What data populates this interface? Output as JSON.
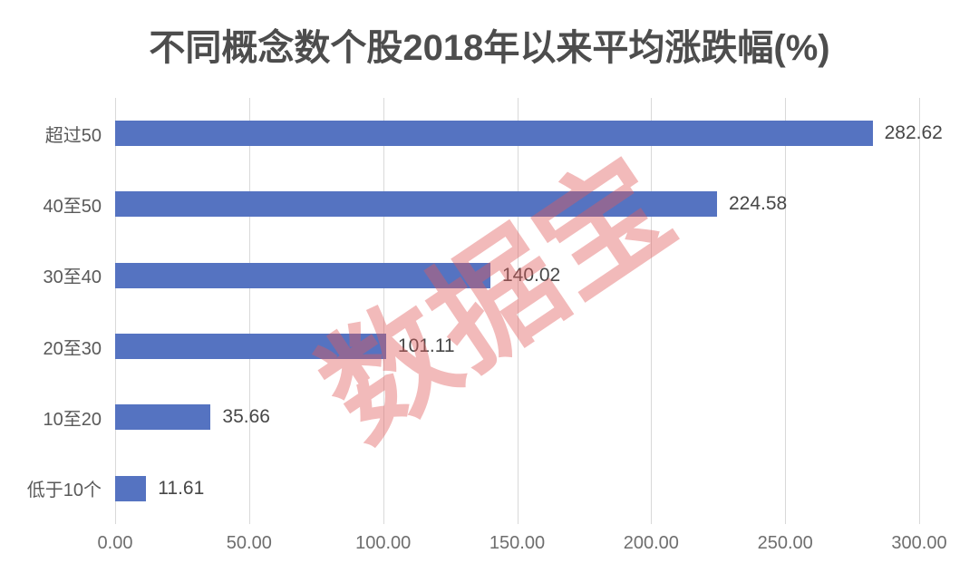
{
  "title": "不同概念数个股2018年以来平均涨跌幅(%)",
  "watermark": "数据宝",
  "colors": {
    "bar": "#5573C1",
    "watermark": "#E05A5A",
    "grid": "#D9D9D9",
    "title_text": "#4D4D4D",
    "category_text": "#595959",
    "value_text": "#474747",
    "tick_text": "#6E6E6E"
  },
  "chart_data": {
    "type": "bar",
    "orientation": "horizontal",
    "title": "不同概念数个股2018年以来平均涨跌幅(%)",
    "categories": [
      "超过50",
      "40至50",
      "30至40",
      "20至30",
      "10至20",
      "低于10个"
    ],
    "values": [
      282.62,
      224.58,
      140.02,
      101.11,
      35.66,
      11.61
    ],
    "value_labels": [
      "282.62",
      "224.58",
      "140.02",
      "101.11",
      "35.66",
      "11.61"
    ],
    "x_ticks": [
      "0.00",
      "50.00",
      "100.00",
      "150.00",
      "200.00",
      "250.00",
      "300.00"
    ],
    "xlim": [
      0,
      300
    ],
    "xlabel": "",
    "ylabel": "",
    "grid": "vertical-only",
    "legend": "none"
  }
}
